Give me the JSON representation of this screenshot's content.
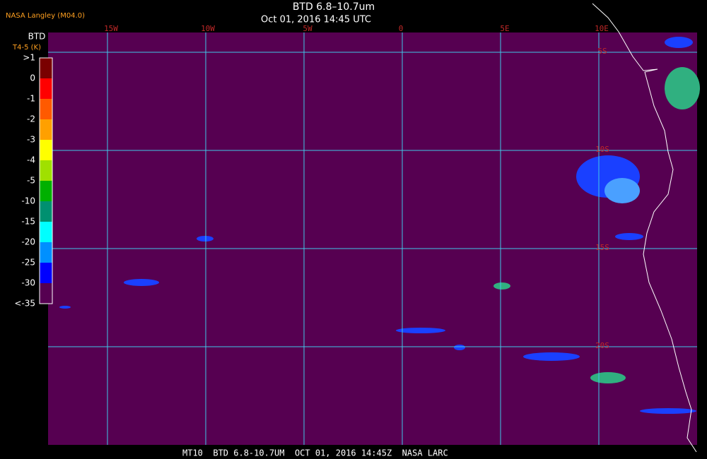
{
  "header": {
    "source": "NASA Langley (M04.0)",
    "title": "BTD 6.8–10.7um",
    "datetime": "Oct 01, 2016 14:45 UTC"
  },
  "legend": {
    "title": "BTD",
    "unit": "T4-5 (K)",
    "labels": [
      ">1",
      "0",
      "-1",
      "-2",
      "-3",
      "-4",
      "-5",
      "-10",
      "-15",
      "-20",
      "-25",
      "-30",
      "<-35"
    ],
    "colors": [
      "#7a0000",
      "#ff0000",
      "#ff5a00",
      "#ffa000",
      "#ffff00",
      "#a0e000",
      "#00b000",
      "#009070",
      "#00ffff",
      "#0090ff",
      "#0000ff",
      "#560051"
    ]
  },
  "map": {
    "lon_labels": [
      "15W",
      "10W",
      "5W",
      "0",
      "5E",
      "10E"
    ],
    "lat_labels": [
      "5S",
      "10S",
      "15S",
      "20S"
    ]
  },
  "footer": "MT10  BTD 6.8-10.7UM  OCT 01, 2016 14:45Z  NASA LARC"
}
